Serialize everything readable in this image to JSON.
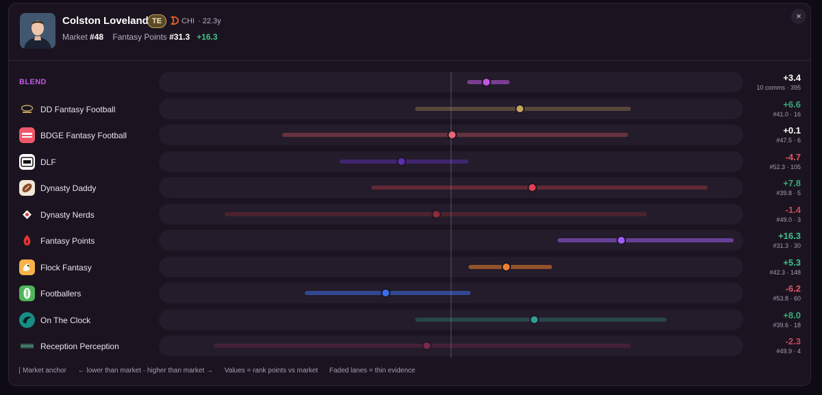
{
  "player": {
    "name": "Colston Loveland",
    "position": "TE",
    "team": "CHI",
    "age": "· 22.3y",
    "market_label": "Market",
    "market_rank": "#48",
    "fp_label": "Fantasy Points",
    "fp_rank": "#31.3",
    "fp_delta": "+16.3"
  },
  "close_label": "×",
  "chart_data": {
    "type": "range-dot",
    "anchor": "Market anchor",
    "x_min": -17,
    "x_max": 17,
    "rows": [
      {
        "label": "BLEND",
        "delta": "+3.4",
        "sub": "10 comms · 395",
        "value": 3.4,
        "low": 1.6,
        "high": 5.6,
        "color": "#c257e6",
        "sign": "pos-b",
        "faded": false
      },
      {
        "label": "DD Fantasy Football",
        "delta": "+6.6",
        "sub": "#41.0 · 16",
        "value": 6.6,
        "low": -3.4,
        "high": 17.2,
        "color": "#c6a561",
        "sign": "pos",
        "faded": true
      },
      {
        "label": "BDGE Fantasy Football",
        "delta": "+0.1",
        "sub": "#47.5 · 6",
        "value": 0.1,
        "low": -16.1,
        "high": 16.9,
        "color": "#f06474",
        "sign": "neu",
        "faded": true
      },
      {
        "label": "DLF",
        "delta": "-4.7",
        "sub": "#52.3 · 105",
        "value": -4.7,
        "low": -10.6,
        "high": 1.7,
        "color": "#5a2ea8",
        "sign": "neg",
        "faded": false
      },
      {
        "label": "Dynasty Daddy",
        "delta": "+7.8",
        "sub": "#39.8 · 5",
        "value": 7.8,
        "low": -7.6,
        "high": 24.5,
        "color": "#e2414e",
        "sign": "pos",
        "faded": true
      },
      {
        "label": "Dynasty Nerds",
        "delta": "-1.4",
        "sub": "#49.0 · 3",
        "value": -1.4,
        "low": -21.6,
        "high": 18.7,
        "color": "#a4303c",
        "sign": "neg",
        "faded": true
      },
      {
        "label": "Fantasy Points",
        "delta": "+16.3",
        "sub": "#31.3 · 30",
        "value": 16.3,
        "low": 10.2,
        "high": 30.0,
        "color": "#9c5ef0",
        "sign": "pos",
        "faded": false
      },
      {
        "label": "Flock Fantasy",
        "delta": "+5.3",
        "sub": "#42.3 · 148",
        "value": 5.3,
        "low": 1.7,
        "high": 9.7,
        "color": "#f07f2a",
        "sign": "pos",
        "faded": false
      },
      {
        "label": "Footballers",
        "delta": "-6.2",
        "sub": "#53.8 · 60",
        "value": -6.2,
        "low": -13.9,
        "high": 1.9,
        "color": "#3a6fe8",
        "sign": "neg",
        "faded": false
      },
      {
        "label": "On The Clock",
        "delta": "+8.0",
        "sub": "#39.6 · 18",
        "value": 8.0,
        "low": -3.4,
        "high": 20.6,
        "color": "#2e9f92",
        "sign": "pos",
        "faded": true
      },
      {
        "label": "Reception Perception",
        "delta": "-2.3",
        "sub": "#49.9 · 4",
        "value": -2.3,
        "low": -22.6,
        "high": 17.2,
        "color": "#8a2d52",
        "sign": "neg",
        "faded": true
      }
    ]
  },
  "legend": {
    "anchor": "Market anchor",
    "direction": "← lower than market · higher than market →",
    "values": "Values = rank points vs market",
    "faded": "Faded lanes = thin evidence"
  }
}
